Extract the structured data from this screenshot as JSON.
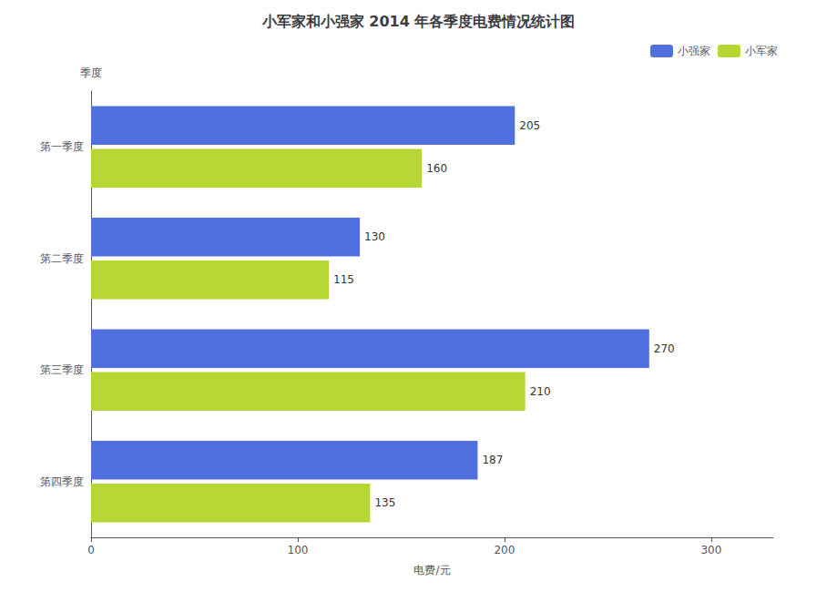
{
  "chart_data": {
    "type": "bar",
    "orientation": "horizontal",
    "title": "小军家和小强家 2014 年各季度电费情况统计图",
    "xlabel": "电费/元",
    "ylabel": "季度",
    "categories": [
      "第四季度",
      "第三季度",
      "第二季度",
      "第一季度"
    ],
    "series": [
      {
        "name": "小强家",
        "values": [
          187,
          270,
          130,
          205
        ]
      },
      {
        "name": "小军家",
        "values": [
          135,
          210,
          115,
          160
        ]
      }
    ],
    "xlim": [
      0,
      330
    ],
    "xticks": [
      0,
      100,
      200,
      300
    ],
    "data_labels": true,
    "legend": "upper right",
    "grid": false
  }
}
